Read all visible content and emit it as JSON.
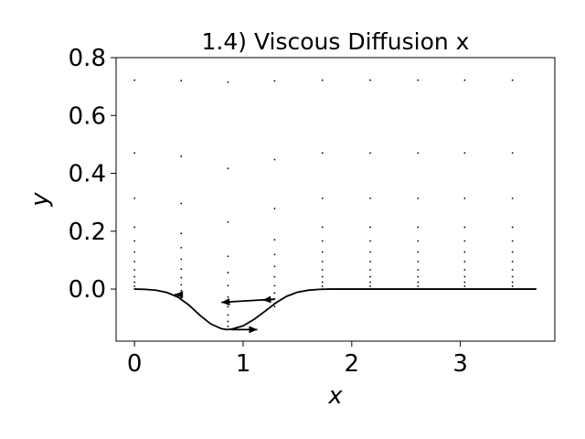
{
  "chart_data": {
    "type": "line",
    "title": "1.4) Viscous Diffusion x",
    "xlabel": "x",
    "ylabel": "y",
    "xlim": [
      -0.17,
      3.87
    ],
    "ylim": [
      -0.18,
      0.8
    ],
    "xticks": [
      0,
      1,
      2,
      3
    ],
    "yticks": [
      0.0,
      0.2,
      0.4,
      0.6,
      0.8
    ],
    "xtick_labels": [
      "0",
      "1",
      "2",
      "3"
    ],
    "ytick_labels": [
      "0.0",
      "0.2",
      "0.4",
      "0.6",
      "0.8"
    ],
    "grid": false,
    "wall_profile": {
      "x": [
        0.0,
        0.1,
        0.2,
        0.3,
        0.4,
        0.5,
        0.6,
        0.7,
        0.8,
        0.85,
        0.9,
        1.0,
        1.1,
        1.2,
        1.3,
        1.4,
        1.5,
        1.6,
        1.7,
        1.8,
        2.0,
        2.5,
        3.0,
        3.5,
        3.7
      ],
      "y": [
        0.0,
        -0.001,
        -0.004,
        -0.012,
        -0.028,
        -0.055,
        -0.09,
        -0.12,
        -0.137,
        -0.14,
        -0.138,
        -0.127,
        -0.105,
        -0.077,
        -0.048,
        -0.025,
        -0.011,
        -0.004,
        -0.001,
        0.0,
        0.0,
        0.0,
        0.0,
        0.0,
        0.0
      ]
    },
    "grid_points": {
      "columns_x": [
        0.0,
        0.43,
        0.86,
        1.29,
        1.73,
        2.17,
        2.61,
        3.04,
        3.48
      ],
      "column_wall_y": [
        0.0,
        -0.03,
        -0.14,
        -0.06,
        0.0,
        0.0,
        0.0,
        0.0,
        0.0
      ],
      "eta_levels": [
        0.0,
        0.01,
        0.025,
        0.045,
        0.07,
        0.1,
        0.135,
        0.175,
        0.225,
        0.33,
        0.495,
        0.76
      ]
    },
    "vectors": [
      {
        "x": 0.41,
        "y": -0.019,
        "u": -0.04,
        "v": 0.0
      },
      {
        "x": 1.29,
        "y": -0.035,
        "u": -0.49,
        "v": -0.011
      },
      {
        "x": 1.29,
        "y": -0.035,
        "u": -0.11,
        "v": -0.003
      },
      {
        "x": 0.89,
        "y": -0.14,
        "u": 0.24,
        "v": 0.0
      }
    ]
  }
}
